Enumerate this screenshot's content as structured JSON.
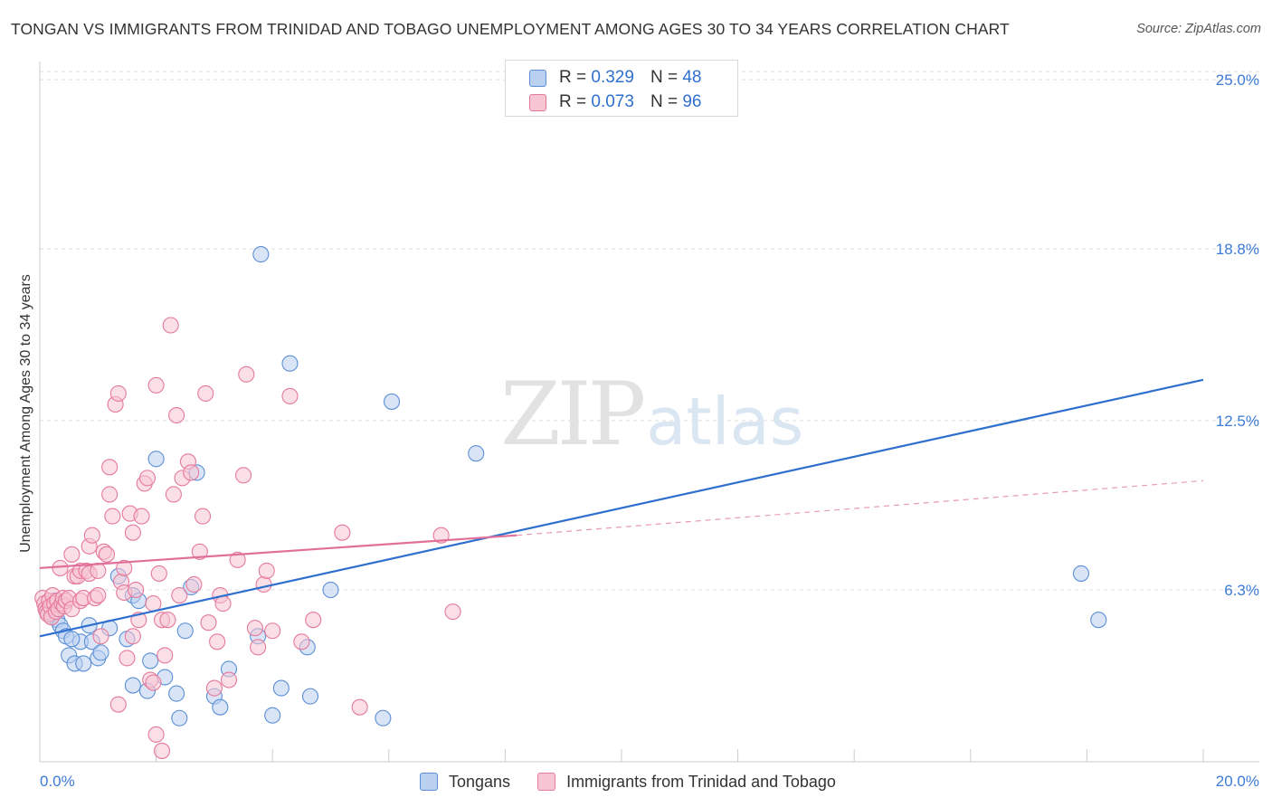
{
  "title": "TONGAN VS IMMIGRANTS FROM TRINIDAD AND TOBAGO UNEMPLOYMENT AMONG AGES 30 TO 34 YEARS CORRELATION CHART",
  "source": "Source: ZipAtlas.com",
  "watermark": {
    "zip": "ZIP",
    "atlas": "atlas"
  },
  "legend": {
    "r_label": "R =",
    "n_label": "N =",
    "series": [
      {
        "r": "0.329",
        "n": "48"
      },
      {
        "r": "0.073",
        "n": "96"
      }
    ]
  },
  "chart_data": {
    "type": "scatter",
    "title": "TONGAN VS IMMIGRANTS FROM TRINIDAD AND TOBAGO UNEMPLOYMENT AMONG AGES 30 TO 34 YEARS CORRELATION CHART",
    "xlabel": "",
    "ylabel": "Unemployment Among Ages 30 to 34 years",
    "xlim": [
      0,
      20
    ],
    "ylim": [
      0,
      25.6
    ],
    "x_tick_labels": [
      {
        "value": 0,
        "label": "0.0%"
      },
      {
        "value": 20,
        "label": "20.0%"
      }
    ],
    "y_tick_labels": [
      {
        "value": 6.3,
        "label": "6.3%"
      },
      {
        "value": 12.5,
        "label": "12.5%"
      },
      {
        "value": 18.8,
        "label": "18.8%"
      },
      {
        "value": 25.0,
        "label": "25.0%"
      }
    ],
    "grid": "horizontal dashed",
    "legend_position": "top-center",
    "series": [
      {
        "name": "Tongans",
        "color": "#5b8fd6",
        "fill": "#b9d0f0",
        "r": 0.329,
        "n": 48,
        "trend": {
          "x": [
            0,
            20
          ],
          "y": [
            4.6,
            14.0
          ],
          "style": "solid"
        },
        "points": [
          [
            0.15,
            5.6
          ],
          [
            0.2,
            5.4
          ],
          [
            0.25,
            5.9
          ],
          [
            0.3,
            5.2
          ],
          [
            0.35,
            5.0
          ],
          [
            0.4,
            4.8
          ],
          [
            0.45,
            4.6
          ],
          [
            0.5,
            3.9
          ],
          [
            0.6,
            3.6
          ],
          [
            0.7,
            4.4
          ],
          [
            0.75,
            3.6
          ],
          [
            0.85,
            5.0
          ],
          [
            0.9,
            4.4
          ],
          [
            1.0,
            3.8
          ],
          [
            1.05,
            4.0
          ],
          [
            1.2,
            4.9
          ],
          [
            1.35,
            6.8
          ],
          [
            1.5,
            4.5
          ],
          [
            1.6,
            2.8
          ],
          [
            1.6,
            6.1
          ],
          [
            1.7,
            5.9
          ],
          [
            1.85,
            2.6
          ],
          [
            1.9,
            3.7
          ],
          [
            2.0,
            11.1
          ],
          [
            2.15,
            3.1
          ],
          [
            2.35,
            2.5
          ],
          [
            2.4,
            1.6
          ],
          [
            2.5,
            4.8
          ],
          [
            2.6,
            6.4
          ],
          [
            2.7,
            10.6
          ],
          [
            3.0,
            2.4
          ],
          [
            3.1,
            2.0
          ],
          [
            3.25,
            3.4
          ],
          [
            3.75,
            4.6
          ],
          [
            3.8,
            18.6
          ],
          [
            4.0,
            1.7
          ],
          [
            4.15,
            2.7
          ],
          [
            4.3,
            14.6
          ],
          [
            4.6,
            4.2
          ],
          [
            4.65,
            2.4
          ],
          [
            5.0,
            6.3
          ],
          [
            5.9,
            1.6
          ],
          [
            6.05,
            13.2
          ],
          [
            7.5,
            11.3
          ],
          [
            8.15,
            25.0
          ],
          [
            17.9,
            6.9
          ],
          [
            18.2,
            5.2
          ],
          [
            0.55,
            4.5
          ]
        ]
      },
      {
        "name": "Immigrants from Trinidad and Tobago",
        "color": "#e5799a",
        "fill": "#f8c5d3",
        "r": 0.073,
        "n": 96,
        "trend": {
          "x": [
            0,
            8.2
          ],
          "y": [
            7.1,
            8.3
          ],
          "style": "solid",
          "extension": {
            "x": [
              8.2,
              20
            ],
            "y": [
              8.3,
              10.3
            ],
            "style": "dashed"
          }
        },
        "points": [
          [
            0.05,
            6.0
          ],
          [
            0.08,
            5.8
          ],
          [
            0.1,
            5.6
          ],
          [
            0.12,
            5.5
          ],
          [
            0.14,
            5.4
          ],
          [
            0.16,
            5.9
          ],
          [
            0.18,
            5.7
          ],
          [
            0.2,
            5.3
          ],
          [
            0.22,
            6.1
          ],
          [
            0.25,
            5.8
          ],
          [
            0.28,
            5.5
          ],
          [
            0.3,
            5.9
          ],
          [
            0.32,
            5.6
          ],
          [
            0.35,
            7.1
          ],
          [
            0.38,
            5.8
          ],
          [
            0.4,
            6.0
          ],
          [
            0.42,
            5.7
          ],
          [
            0.45,
            5.9
          ],
          [
            0.5,
            6.0
          ],
          [
            0.55,
            5.6
          ],
          [
            0.55,
            7.6
          ],
          [
            0.6,
            6.8
          ],
          [
            0.65,
            6.8
          ],
          [
            0.7,
            5.9
          ],
          [
            0.7,
            7.0
          ],
          [
            0.75,
            6.0
          ],
          [
            0.8,
            7.0
          ],
          [
            0.85,
            7.9
          ],
          [
            0.85,
            6.9
          ],
          [
            0.9,
            8.3
          ],
          [
            0.95,
            6.0
          ],
          [
            1.0,
            7.0
          ],
          [
            1.0,
            6.1
          ],
          [
            1.05,
            4.6
          ],
          [
            1.1,
            7.7
          ],
          [
            1.15,
            7.6
          ],
          [
            1.2,
            10.8
          ],
          [
            1.2,
            9.8
          ],
          [
            1.25,
            9.0
          ],
          [
            1.3,
            13.1
          ],
          [
            1.35,
            13.5
          ],
          [
            1.4,
            6.6
          ],
          [
            1.45,
            7.1
          ],
          [
            1.45,
            6.2
          ],
          [
            1.5,
            3.8
          ],
          [
            1.55,
            9.1
          ],
          [
            1.6,
            4.6
          ],
          [
            1.6,
            8.4
          ],
          [
            1.65,
            6.3
          ],
          [
            1.7,
            5.2
          ],
          [
            1.75,
            9.0
          ],
          [
            1.8,
            10.2
          ],
          [
            1.85,
            10.4
          ],
          [
            1.9,
            3.0
          ],
          [
            1.95,
            5.8
          ],
          [
            2.0,
            13.8
          ],
          [
            2.05,
            6.9
          ],
          [
            2.1,
            5.2
          ],
          [
            2.15,
            3.9
          ],
          [
            2.2,
            5.2
          ],
          [
            2.25,
            16.0
          ],
          [
            2.3,
            9.8
          ],
          [
            2.35,
            12.7
          ],
          [
            2.45,
            10.4
          ],
          [
            2.55,
            11.0
          ],
          [
            2.6,
            10.6
          ],
          [
            2.65,
            6.5
          ],
          [
            2.75,
            7.7
          ],
          [
            2.8,
            9.0
          ],
          [
            2.85,
            13.5
          ],
          [
            2.9,
            5.1
          ],
          [
            3.0,
            2.7
          ],
          [
            3.05,
            4.4
          ],
          [
            3.1,
            6.1
          ],
          [
            3.25,
            3.0
          ],
          [
            3.4,
            7.4
          ],
          [
            3.5,
            10.5
          ],
          [
            3.55,
            14.2
          ],
          [
            3.7,
            4.9
          ],
          [
            3.75,
            4.2
          ],
          [
            3.85,
            6.5
          ],
          [
            3.9,
            7.0
          ],
          [
            4.0,
            4.8
          ],
          [
            4.3,
            13.4
          ],
          [
            4.5,
            4.4
          ],
          [
            4.7,
            5.2
          ],
          [
            5.2,
            8.4
          ],
          [
            5.5,
            2.0
          ],
          [
            6.9,
            8.3
          ],
          [
            7.1,
            5.5
          ],
          [
            2.0,
            1.0
          ],
          [
            2.1,
            0.4
          ],
          [
            2.4,
            6.1
          ],
          [
            1.95,
            2.9
          ],
          [
            3.15,
            5.8
          ],
          [
            1.35,
            2.1
          ]
        ]
      }
    ]
  }
}
